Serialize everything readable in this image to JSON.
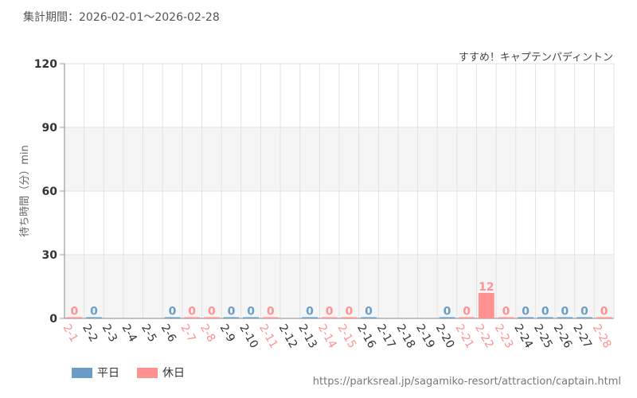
{
  "header": {
    "period_label": "集計期間：2026-02-01～2026-02-28",
    "attraction_name": "すすめ！キャプテンパディントン"
  },
  "footer": {
    "source_url": "https://parksreal.jp/sagamiko-resort/attraction/captain.html"
  },
  "colors": {
    "weekday": "#6a9cc6",
    "holiday": "#ff9191",
    "grid": "#e2e2e2",
    "band": "#f5f5f5"
  },
  "chart_data": {
    "type": "bar",
    "ylabel": "待ち時間（分）min",
    "xlabel": "",
    "ylim": [
      0,
      120
    ],
    "yticks": [
      0,
      30,
      60,
      90,
      120
    ],
    "categories": [
      "2-1",
      "2-2",
      "2-3",
      "2-4",
      "2-5",
      "2-6",
      "2-7",
      "2-8",
      "2-9",
      "2-10",
      "2-11",
      "2-12",
      "2-13",
      "2-14",
      "2-15",
      "2-16",
      "2-17",
      "2-18",
      "2-19",
      "2-20",
      "2-21",
      "2-22",
      "2-23",
      "2-24",
      "2-25",
      "2-26",
      "2-27",
      "2-28"
    ],
    "day_type": [
      "holiday",
      "weekday",
      "weekday",
      "weekday",
      "weekday",
      "weekday",
      "holiday",
      "holiday",
      "weekday",
      "weekday",
      "holiday",
      "weekday",
      "weekday",
      "holiday",
      "holiday",
      "weekday",
      "weekday",
      "weekday",
      "weekday",
      "weekday",
      "holiday",
      "holiday",
      "holiday",
      "weekday",
      "weekday",
      "weekday",
      "weekday",
      "holiday"
    ],
    "values": [
      0,
      0,
      null,
      null,
      null,
      0,
      0,
      0,
      0,
      0,
      0,
      null,
      0,
      0,
      0,
      0,
      null,
      null,
      null,
      0,
      0,
      12,
      0,
      0,
      0,
      0,
      0,
      0
    ],
    "legend": [
      {
        "name": "平日",
        "key": "weekday"
      },
      {
        "name": "休日",
        "key": "holiday"
      }
    ],
    "legend_position": "bottom-left"
  }
}
